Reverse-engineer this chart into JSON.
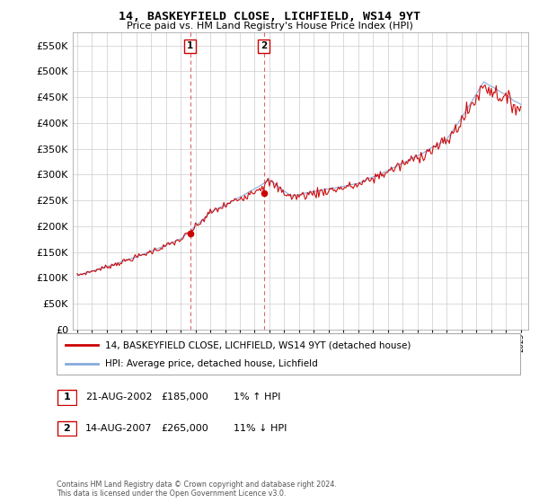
{
  "title": "14, BASKEYFIELD CLOSE, LICHFIELD, WS14 9YT",
  "subtitle": "Price paid vs. HM Land Registry's House Price Index (HPI)",
  "ylim": [
    0,
    575000
  ],
  "yticks": [
    0,
    50000,
    100000,
    150000,
    200000,
    250000,
    300000,
    350000,
    400000,
    450000,
    500000,
    550000
  ],
  "xmin": 1994.7,
  "xmax": 2025.5,
  "transaction1_x": 2002.64,
  "transaction1_y": 185000,
  "transaction1_label": "21-AUG-2002",
  "transaction1_price": "£185,000",
  "transaction1_hpi": "1% ↑ HPI",
  "transaction2_x": 2007.62,
  "transaction2_y": 265000,
  "transaction2_label": "14-AUG-2007",
  "transaction2_price": "£265,000",
  "transaction2_hpi": "11% ↓ HPI",
  "line_color_red": "#cc0000",
  "line_color_blue": "#88aadd",
  "vline_color": "#cc0000",
  "background_color": "#ffffff",
  "grid_color": "#cccccc",
  "legend_label_red": "14, BASKEYFIELD CLOSE, LICHFIELD, WS14 9YT (detached house)",
  "legend_label_blue": "HPI: Average price, detached house, Lichfield",
  "footnote": "Contains HM Land Registry data © Crown copyright and database right 2024.\nThis data is licensed under the Open Government Licence v3.0."
}
